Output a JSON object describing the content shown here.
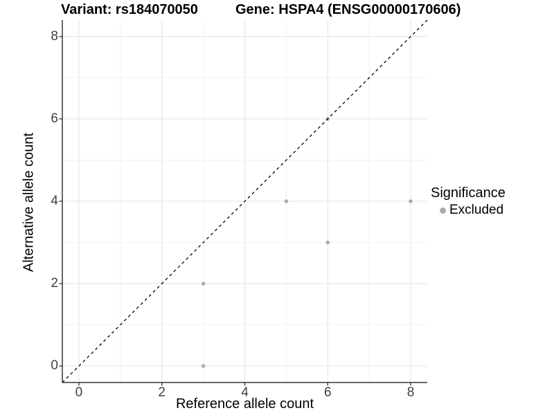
{
  "chart_data": {
    "type": "scatter",
    "titles": {
      "left": "Variant: rs184070050",
      "right": "Gene: HSPA4 (ENSG00000170606)"
    },
    "xlabel": "Reference allele count",
    "ylabel": "Alternative allele count",
    "xlim": [
      -0.4,
      8.4
    ],
    "ylim": [
      -0.4,
      8.4
    ],
    "x_tick_values": [
      0,
      2,
      4,
      6,
      8
    ],
    "y_tick_values": [
      0,
      2,
      4,
      6,
      8
    ],
    "x_minor_values": [
      1,
      3,
      5,
      7
    ],
    "y_minor_values": [
      1,
      3,
      5,
      7
    ],
    "grid": true,
    "reference_line": {
      "type": "identity y=x",
      "style": "dashed",
      "color": "#000000"
    },
    "series": [
      {
        "name": "Excluded",
        "color": "#a9a9a9",
        "points": [
          {
            "x": 3,
            "y": 0
          },
          {
            "x": 3,
            "y": 2
          },
          {
            "x": 5,
            "y": 4
          },
          {
            "x": 6,
            "y": 3
          },
          {
            "x": 6,
            "y": 6
          },
          {
            "x": 8,
            "y": 4
          }
        ]
      }
    ],
    "legend": {
      "title": "Significance",
      "position": "right",
      "entries": [
        {
          "label": "Excluded",
          "color": "#a9a9a9"
        }
      ]
    }
  },
  "colors": {
    "background": "#ffffff",
    "grid_major": "#e6e6e6",
    "grid_minor": "#f2f2f2",
    "axis_line": "#333333",
    "tick_mark": "#333333",
    "tick_label": "#404040",
    "point": "#a9a9a9",
    "reference_line": "#000000",
    "text": "#000000"
  }
}
